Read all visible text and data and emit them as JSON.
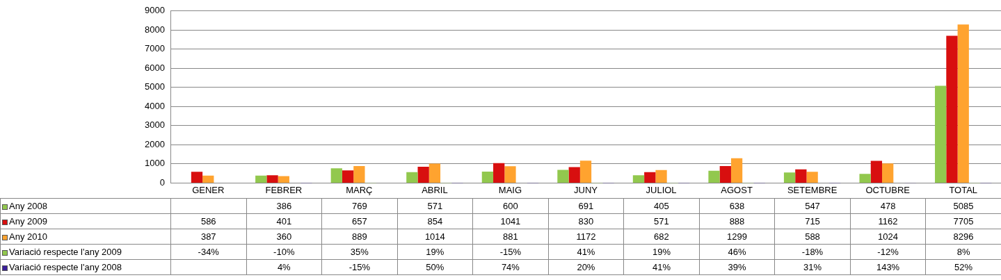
{
  "chart_data": {
    "type": "bar",
    "categories": [
      "GENER",
      "FEBRER",
      "MARÇ",
      "ABRIL",
      "MAIG",
      "JUNY",
      "JULIOL",
      "AGOST",
      "SETEMBRE",
      "OCTUBRE",
      "TOTAL"
    ],
    "series": [
      {
        "name": "Any 2008",
        "color": "#92c84e",
        "values": [
          null,
          386,
          769,
          571,
          600,
          691,
          405,
          638,
          547,
          478,
          5085
        ],
        "value_labels": [
          null,
          "386",
          "769",
          "571",
          "600",
          "691",
          "405",
          "638",
          "547",
          "478",
          "5085"
        ]
      },
      {
        "name": "Any 2009",
        "color": "#d80f0f",
        "values": [
          586,
          401,
          657,
          854,
          1041,
          830,
          571,
          888,
          715,
          1162,
          7705
        ],
        "value_labels": [
          "586",
          "401",
          "657",
          "854",
          "1041",
          "830",
          "571",
          "888",
          "715",
          "1162",
          "7705"
        ]
      },
      {
        "name": "Any 2010",
        "color": "#ffa32f",
        "values": [
          387,
          360,
          889,
          1014,
          881,
          1172,
          682,
          1299,
          588,
          1024,
          8296
        ],
        "value_labels": [
          "387",
          "360",
          "889",
          "1014",
          "881",
          "1172",
          "682",
          "1299",
          "588",
          "1024",
          "8296"
        ]
      },
      {
        "name": "Variació respecte l'any 2009",
        "color": "#92c84e",
        "values": [
          null,
          null,
          0.35,
          0.19,
          null,
          0.41,
          0.19,
          0.46,
          null,
          null,
          0.08
        ],
        "value_labels": [
          "-34%",
          "-10%",
          "35%",
          "19%",
          "-15%",
          "41%",
          "19%",
          "46%",
          "-18%",
          "-12%",
          "8%"
        ]
      },
      {
        "name": "Variació respecte l'any 2008",
        "color": "#3a1f9a",
        "values": [
          null,
          0.04,
          null,
          0.5,
          0.74,
          0.2,
          0.41,
          0.39,
          0.31,
          1.43,
          0.52
        ],
        "value_labels": [
          null,
          "4%",
          "-15%",
          "50%",
          "74%",
          "20%",
          "41%",
          "39%",
          "31%",
          "143%",
          "52%"
        ]
      }
    ],
    "ylim": [
      0,
      9000
    ],
    "yticks": [
      0,
      1000,
      2000,
      3000,
      4000,
      5000,
      6000,
      7000,
      8000,
      9000
    ],
    "grid": "y",
    "legend": "left"
  }
}
